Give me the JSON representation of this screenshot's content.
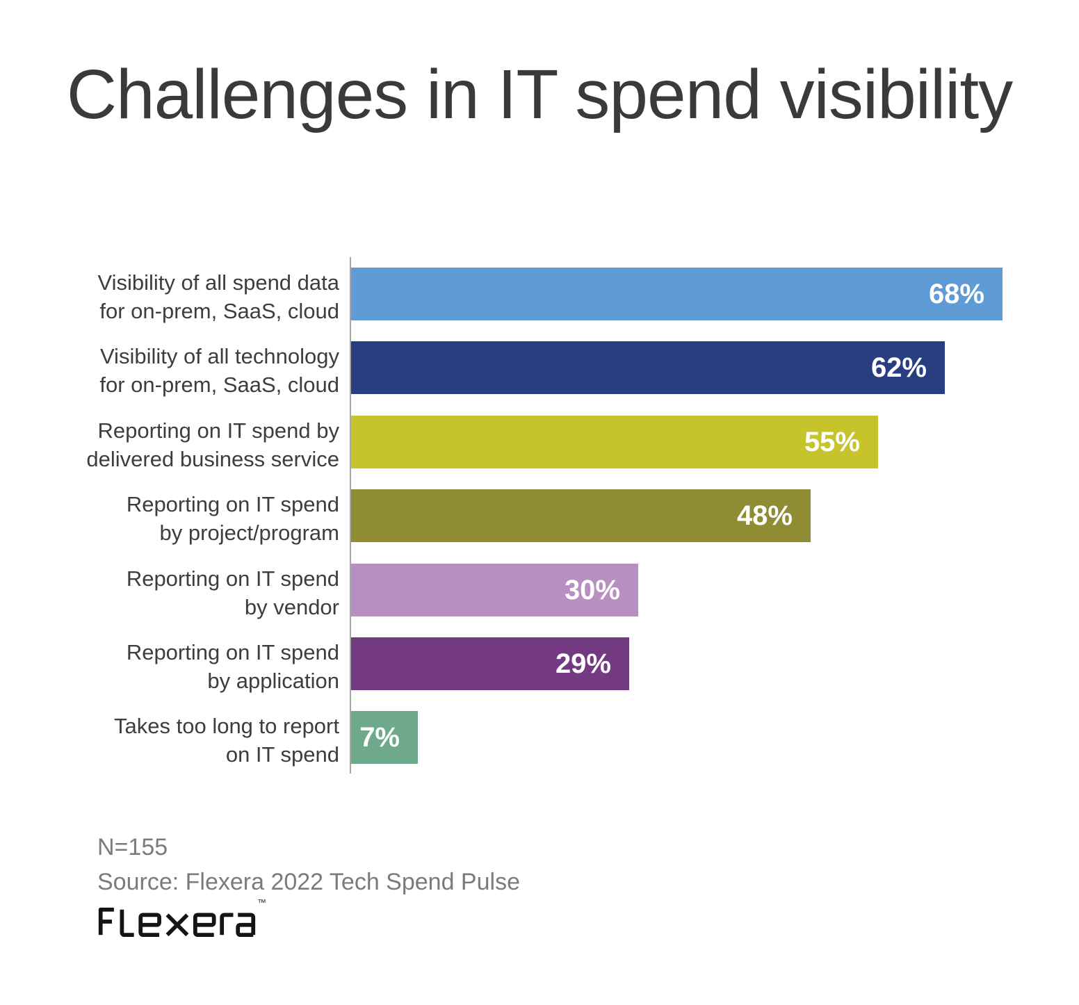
{
  "page": {
    "background": "#ffffff"
  },
  "chart_data": {
    "type": "bar",
    "orientation": "horizontal",
    "title": "Challenges in IT spend visibility",
    "categories": [
      [
        "Visibility of all spend data",
        "for on-prem, SaaS, cloud"
      ],
      [
        "Visibility of all technology",
        "for on-prem, SaaS, cloud"
      ],
      [
        "Reporting on IT spend by",
        "delivered business service"
      ],
      [
        "Reporting on IT spend",
        "by project/program"
      ],
      [
        "Reporting on IT spend",
        "by vendor"
      ],
      [
        "Reporting on IT spend",
        "by application"
      ],
      [
        "Takes too long to report",
        "on IT spend"
      ]
    ],
    "values": [
      68,
      62,
      55,
      48,
      30,
      29,
      7
    ],
    "value_labels": [
      "68%",
      "62%",
      "55%",
      "48%",
      "30%",
      "29%",
      "7%"
    ],
    "unit": "%",
    "colors": [
      "#5F9BD5",
      "#283E80",
      "#C6C32B",
      "#8F8C33",
      "#B78FC0",
      "#733A81",
      "#6FA98C"
    ],
    "layout": {
      "gridlines": false,
      "legend": false,
      "value_labels_inside_bars": true,
      "category_axis_line_color": "#a6a6a6",
      "value_axis_ticks_visible": false
    }
  },
  "footer": {
    "n_label": "N=155",
    "source": "Source: Flexera 2022 Tech Spend Pulse",
    "brand": "FLEXERA",
    "trademark": "™"
  }
}
